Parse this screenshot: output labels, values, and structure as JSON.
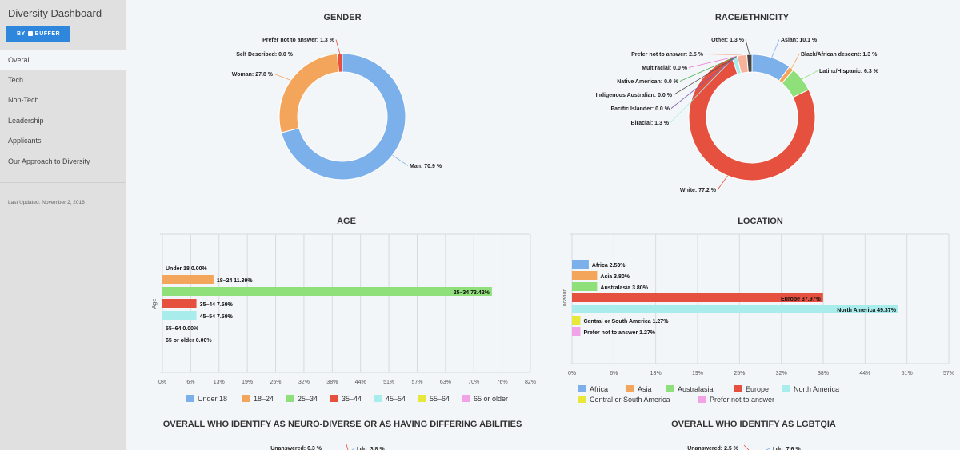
{
  "sidebar": {
    "title": "Diversity Dashboard",
    "badge_prefix": "BY",
    "badge_label": "BUFFER",
    "nav": [
      "Overall",
      "Tech",
      "Non-Tech",
      "Leadership",
      "Applicants",
      "Our Approach to Diversity"
    ],
    "active": "Overall",
    "last_updated": "Last Updated: November 2, 2016"
  },
  "chart_data": [
    {
      "type": "pie",
      "title": "GENDER",
      "slices": [
        {
          "label": "Man",
          "value": 70.9,
          "display": "Man: 70.9 %",
          "color": "#7cb0eb"
        },
        {
          "label": "Woman",
          "value": 27.8,
          "display": "Woman: 27.8 %",
          "color": "#f4a55c"
        },
        {
          "label": "Self Described",
          "value": 0.0,
          "display": "Self Described: 0.0 %",
          "color": "#8fe07a"
        },
        {
          "label": "Prefer not to answer",
          "value": 1.3,
          "display": "Prefer not to answer: 1.3 %",
          "color": "#e6513f"
        }
      ]
    },
    {
      "type": "pie",
      "title": "RACE/ETHNICITY",
      "slices": [
        {
          "label": "Asian",
          "value": 10.1,
          "display": "Asian: 10.1 %",
          "color": "#7cb0eb"
        },
        {
          "label": "Black/African descent",
          "value": 1.3,
          "display": "Black/African descent: 1.3 %",
          "color": "#f4a55c"
        },
        {
          "label": "Latinx/Hispanic",
          "value": 6.3,
          "display": "Latinx/Hispanic: 6.3 %",
          "color": "#8fe07a"
        },
        {
          "label": "White",
          "value": 77.2,
          "display": "White: 77.2 %",
          "color": "#e6513f"
        },
        {
          "label": "Biracial",
          "value": 1.3,
          "display": "Biracial: 1.3 %",
          "color": "#a8ecec"
        },
        {
          "label": "Pacific Islander",
          "value": 0.0,
          "display": "Pacific Islander: 0.0 %",
          "color": "#7a5bb5"
        },
        {
          "label": "Indigenous Australian",
          "value": 0.0,
          "display": "Indigenous Australian: 0.0 %",
          "color": "#555555"
        },
        {
          "label": "Native American",
          "value": 0.0,
          "display": "Native American: 0.0 %",
          "color": "#4caf50"
        },
        {
          "label": "Multiracial",
          "value": 0.0,
          "display": "Multiracial: 0.0 %",
          "color": "#f06fd0"
        },
        {
          "label": "Prefer not to answer",
          "value": 2.5,
          "display": "Prefer not to answer: 2.5 %",
          "color": "#f7b299"
        },
        {
          "label": "Other",
          "value": 1.3,
          "display": "Other: 1.3 %",
          "color": "#444444"
        }
      ]
    },
    {
      "type": "bar",
      "orientation": "horizontal",
      "title": "AGE",
      "ylabel": "Age",
      "xlim": [
        0,
        82
      ],
      "x_ticks": [
        "0%",
        "6%",
        "13%",
        "19%",
        "25%",
        "32%",
        "38%",
        "44%",
        "51%",
        "57%",
        "63%",
        "70%",
        "76%",
        "82%"
      ],
      "categories": [
        "Under 18",
        "18-24",
        "25-34",
        "35-44",
        "45-54",
        "55-64",
        "65 or older"
      ],
      "values": [
        0.0,
        11.39,
        73.42,
        7.59,
        7.59,
        0.0,
        0.0
      ],
      "data_labels": [
        "Under 18 0.00%",
        "18–24 11.39%",
        "25–34 73.42%",
        "35–44 7.59%",
        "45–54 7.59%",
        "55–64 0.00%",
        "65 or older 0.00%"
      ],
      "legend": [
        "Under 18",
        "18–24",
        "25–34",
        "35–44",
        "45–54",
        "55–64",
        "65 or older"
      ],
      "colors": [
        "#7cb0eb",
        "#f4a55c",
        "#8fe07a",
        "#e6513f",
        "#a8ecec",
        "#e8e83a",
        "#f2a3e8"
      ]
    },
    {
      "type": "bar",
      "orientation": "horizontal",
      "title": "LOCATION",
      "ylabel": "Location",
      "xlim": [
        0,
        57
      ],
      "x_ticks": [
        "0%",
        "6%",
        "13%",
        "19%",
        "25%",
        "32%",
        "38%",
        "44%",
        "51%",
        "57%"
      ],
      "categories": [
        "Africa",
        "Asia",
        "Australasia",
        "Europe",
        "North America",
        "Central or South America",
        "Prefer not to answer"
      ],
      "values": [
        2.53,
        3.8,
        3.8,
        37.97,
        49.37,
        1.27,
        1.27
      ],
      "data_labels": [
        "Africa 2.53%",
        "Asia 3.80%",
        "Australasia 3.80%",
        "Europe 37.97%",
        "North America 49.37%",
        "Central or South America 1.27%",
        "Prefer not to answer 1.27%"
      ],
      "legend": [
        "Africa",
        "Asia",
        "Australasia",
        "Europe",
        "North America",
        "Central or South America",
        "Prefer not to answer"
      ],
      "colors": [
        "#7cb0eb",
        "#f4a55c",
        "#8fe07a",
        "#e6513f",
        "#a8ecec",
        "#e8e83a",
        "#f2a3e8"
      ]
    },
    {
      "type": "pie",
      "title": "OVERALL WHO IDENTIFY AS NEURO-DIVERSE OR AS HAVING DIFFERING ABILITIES",
      "slices": [
        {
          "label": "Unanswered",
          "value": 6.3,
          "display": "Unanswered: 6.3 %",
          "color": "#e6513f"
        },
        {
          "label": "I do",
          "value": 3.8,
          "display": "I do: 3.8 %",
          "color": "#7cb0eb"
        }
      ]
    },
    {
      "type": "pie",
      "title": "OVERALL WHO IDENTIFY AS LGBTQIA",
      "slices": [
        {
          "label": "Unanswered",
          "value": 2.5,
          "display": "Unanswered: 2.5 %",
          "color": "#e6513f"
        },
        {
          "label": "I do",
          "value": 7.6,
          "display": "I do: 7.6 %",
          "color": "#7cb0eb"
        }
      ]
    }
  ]
}
